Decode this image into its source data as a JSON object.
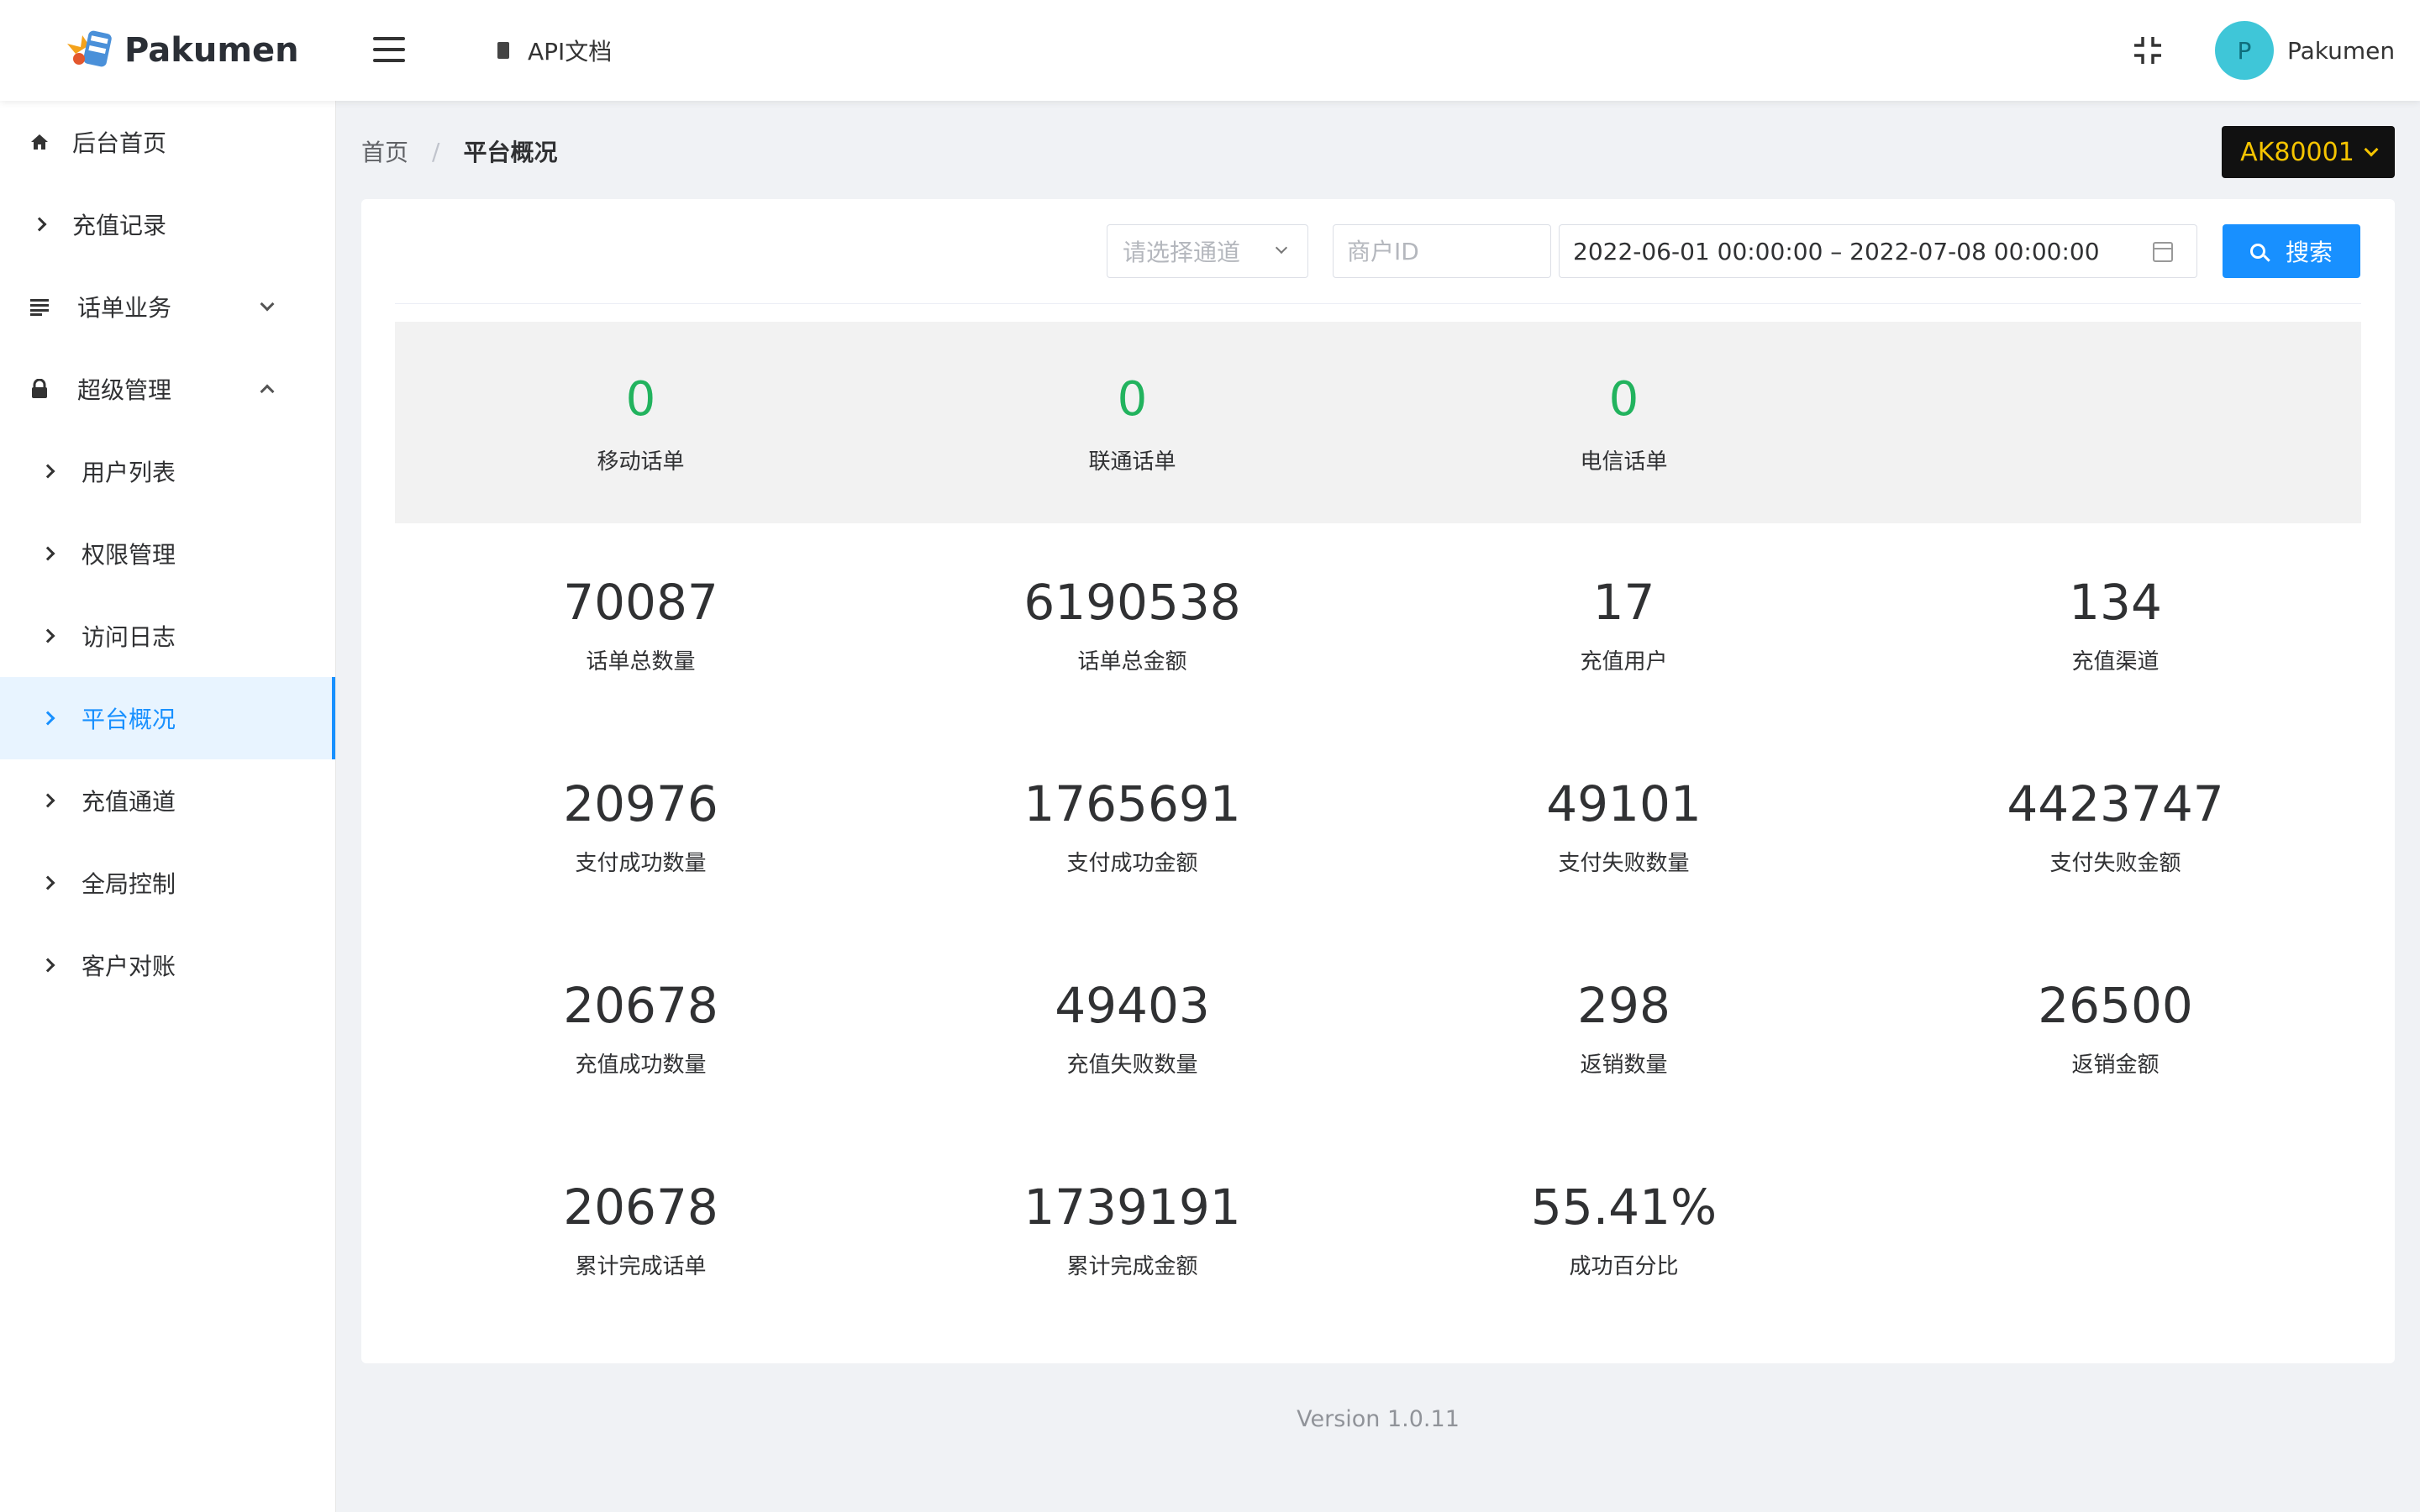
{
  "app": {
    "logo_text": "Pakumen"
  },
  "header": {
    "api_doc_label": "API文档",
    "user": {
      "avatar_letter": "P",
      "name": "Pakumen"
    }
  },
  "sidebar": {
    "items": [
      {
        "label": "后台首页",
        "icon": "home-icon"
      },
      {
        "label": "充值记录",
        "icon": "chevron-right-icon"
      },
      {
        "label": "话单业务",
        "icon": "list-icon",
        "expanded": false
      },
      {
        "label": "超级管理",
        "icon": "lock-icon",
        "expanded": true
      },
      {
        "label": "用户列表",
        "icon": "chevron-right-icon"
      },
      {
        "label": "权限管理",
        "icon": "chevron-right-icon"
      },
      {
        "label": "访问日志",
        "icon": "chevron-right-icon"
      },
      {
        "label": "平台概况",
        "icon": "chevron-right-icon",
        "active": true
      },
      {
        "label": "充值通道",
        "icon": "chevron-right-icon"
      },
      {
        "label": "全局控制",
        "icon": "chevron-right-icon"
      },
      {
        "label": "客户对账",
        "icon": "chevron-right-icon"
      }
    ]
  },
  "breadcrumb": {
    "home": "首页",
    "separator": "/",
    "current": "平台概况"
  },
  "merchant": {
    "label": "AK80001"
  },
  "filters": {
    "channel_placeholder": "请选择通道",
    "merchant_id_placeholder": "商户ID",
    "date_range": "2022-06-01 00:00:00 – 2022-07-08 00:00:00",
    "search_label": "搜索"
  },
  "operators": [
    {
      "value": "0",
      "label": "移动话单"
    },
    {
      "value": "0",
      "label": "联通话单"
    },
    {
      "value": "0",
      "label": "电信话单"
    }
  ],
  "stats": [
    {
      "value": "70087",
      "label": "话单总数量"
    },
    {
      "value": "6190538",
      "label": "话单总金额"
    },
    {
      "value": "17",
      "label": "充值用户"
    },
    {
      "value": "134",
      "label": "充值渠道"
    },
    {
      "value": "20976",
      "label": "支付成功数量"
    },
    {
      "value": "1765691",
      "label": "支付成功金额"
    },
    {
      "value": "49101",
      "label": "支付失败数量"
    },
    {
      "value": "4423747",
      "label": "支付失败金额"
    },
    {
      "value": "20678",
      "label": "充值成功数量"
    },
    {
      "value": "49403",
      "label": "充值失败数量"
    },
    {
      "value": "298",
      "label": "返销数量"
    },
    {
      "value": "26500",
      "label": "返销金额"
    },
    {
      "value": "20678",
      "label": "累计完成话单"
    },
    {
      "value": "1739191",
      "label": "累计完成金额"
    },
    {
      "value": "55.41%",
      "label": "成功百分比"
    }
  ],
  "footer": {
    "version": "Version 1.0.11"
  },
  "colors": {
    "accent": "#1890ff",
    "success_green": "#22b35e",
    "merchant_bg": "#111111",
    "merchant_text": "#f5c400",
    "avatar_bg": "#3fc6d8"
  }
}
